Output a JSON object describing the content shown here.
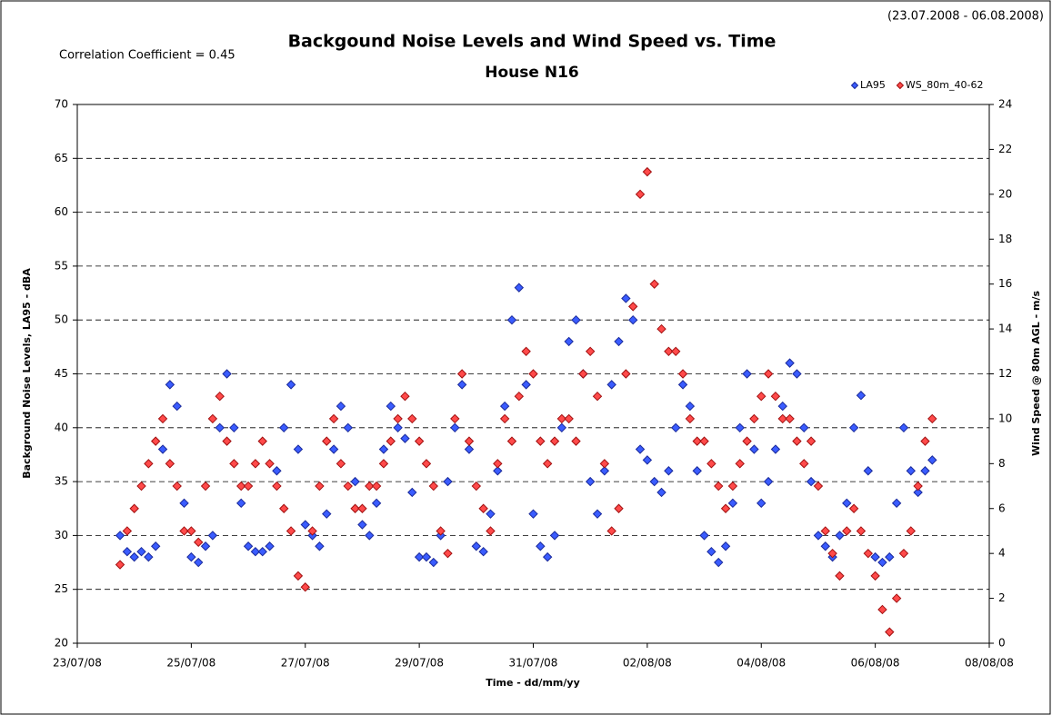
{
  "chart_data": {
    "type": "scatter",
    "title": "Backgound Noise Levels and Wind Speed vs. Time",
    "subtitle": "House N16",
    "annotation": "Correlation Coefficient = 0.45",
    "date_range": "(23.07.2008 - 06.08.2008)",
    "x_label": "Time - dd/mm/yy",
    "y_label": "Background Noise Levels, LA95 - dBA",
    "y2_label": "Wind Speed @ 80m AGL - m/s",
    "legend": "top-right",
    "grid": true,
    "x": [
      "2008-07-23T18:00",
      "2008-07-23T21:00",
      "2008-07-24T00:00",
      "2008-07-24T03:00",
      "2008-07-24T06:00",
      "2008-07-24T09:00",
      "2008-07-24T12:00",
      "2008-07-24T15:00",
      "2008-07-24T18:00",
      "2008-07-24T21:00",
      "2008-07-25T00:00",
      "2008-07-25T03:00",
      "2008-07-25T06:00",
      "2008-07-25T09:00",
      "2008-07-25T12:00",
      "2008-07-25T15:00",
      "2008-07-25T18:00",
      "2008-07-25T21:00",
      "2008-07-26T00:00",
      "2008-07-26T03:00",
      "2008-07-26T06:00",
      "2008-07-26T09:00",
      "2008-07-26T12:00",
      "2008-07-26T15:00",
      "2008-07-26T18:00",
      "2008-07-26T21:00",
      "2008-07-27T00:00",
      "2008-07-27T03:00",
      "2008-07-27T06:00",
      "2008-07-27T09:00",
      "2008-07-27T12:00",
      "2008-07-27T15:00",
      "2008-07-27T18:00",
      "2008-07-27T21:00",
      "2008-07-28T00:00",
      "2008-07-28T03:00",
      "2008-07-28T06:00",
      "2008-07-28T09:00",
      "2008-07-28T12:00",
      "2008-07-28T15:00",
      "2008-07-28T18:00",
      "2008-07-28T21:00",
      "2008-07-29T00:00",
      "2008-07-29T03:00",
      "2008-07-29T06:00",
      "2008-07-29T09:00",
      "2008-07-29T12:00",
      "2008-07-29T15:00",
      "2008-07-29T18:00",
      "2008-07-29T21:00",
      "2008-07-30T00:00",
      "2008-07-30T03:00",
      "2008-07-30T06:00",
      "2008-07-30T09:00",
      "2008-07-30T12:00",
      "2008-07-30T15:00",
      "2008-07-30T18:00",
      "2008-07-30T21:00",
      "2008-07-31T00:00",
      "2008-07-31T03:00",
      "2008-07-31T06:00",
      "2008-07-31T09:00",
      "2008-07-31T12:00",
      "2008-07-31T15:00",
      "2008-07-31T18:00",
      "2008-07-31T21:00",
      "2008-08-01T00:00",
      "2008-08-01T03:00",
      "2008-08-01T06:00",
      "2008-08-01T09:00",
      "2008-08-01T12:00",
      "2008-08-01T15:00",
      "2008-08-01T18:00",
      "2008-08-01T21:00",
      "2008-08-02T00:00",
      "2008-08-02T03:00",
      "2008-08-02T06:00",
      "2008-08-02T09:00",
      "2008-08-02T12:00",
      "2008-08-02T15:00",
      "2008-08-02T18:00",
      "2008-08-02T21:00",
      "2008-08-03T00:00",
      "2008-08-03T03:00",
      "2008-08-03T06:00",
      "2008-08-03T09:00",
      "2008-08-03T12:00",
      "2008-08-03T15:00",
      "2008-08-03T18:00",
      "2008-08-03T21:00",
      "2008-08-04T00:00",
      "2008-08-04T03:00",
      "2008-08-04T06:00",
      "2008-08-04T09:00",
      "2008-08-04T12:00",
      "2008-08-04T15:00",
      "2008-08-04T18:00",
      "2008-08-04T21:00",
      "2008-08-05T00:00",
      "2008-08-05T03:00",
      "2008-08-05T06:00",
      "2008-08-05T09:00",
      "2008-08-05T12:00",
      "2008-08-05T15:00",
      "2008-08-05T18:00",
      "2008-08-05T21:00",
      "2008-08-06T00:00",
      "2008-08-06T03:00",
      "2008-08-06T06:00",
      "2008-08-06T09:00",
      "2008-08-06T12:00",
      "2008-08-06T15:00",
      "2008-08-06T18:00",
      "2008-08-06T21:00",
      "2008-08-07T00:00"
    ],
    "series": [
      {
        "name": "LA95",
        "color": "#3a5cff",
        "stroke": "#1a2a9a",
        "values": [
          30,
          28.5,
          28,
          28.5,
          28,
          29,
          38,
          44,
          42,
          33,
          28,
          27.5,
          29,
          30,
          40,
          45,
          40,
          33,
          29,
          28.5,
          28.5,
          29,
          36,
          40,
          44,
          38,
          31,
          30,
          29,
          32,
          38,
          42,
          40,
          35,
          31,
          30,
          33,
          38,
          42,
          40,
          39,
          34,
          28,
          28,
          27.5,
          30,
          35,
          40,
          44,
          38,
          29,
          28.5,
          32,
          36,
          42,
          50,
          53,
          44,
          32,
          29,
          28,
          30,
          40,
          48,
          50,
          45,
          35,
          32,
          36,
          44,
          48,
          52,
          50,
          38,
          37,
          35,
          34,
          36,
          40,
          44,
          42,
          36,
          30,
          28.5,
          27.5,
          29,
          33,
          40,
          45,
          38,
          33,
          35,
          38,
          42,
          46,
          45,
          40,
          35,
          30,
          29,
          28,
          30,
          33,
          40,
          43,
          36,
          28,
          27.5,
          28,
          33,
          40,
          36,
          34,
          36,
          37
        ]
      },
      {
        "name": "WS_80m_40-62",
        "color": "#ff4a4a",
        "stroke": "#a01010",
        "axis": "y2",
        "values": [
          3.5,
          5,
          6,
          7,
          8,
          9,
          10,
          8,
          7,
          5,
          5,
          4.5,
          7,
          10,
          11,
          9,
          8,
          7,
          7,
          8,
          9,
          8,
          7,
          6,
          5,
          3,
          2.5,
          5,
          7,
          9,
          10,
          8,
          7,
          6,
          6,
          7,
          7,
          8,
          9,
          10,
          11,
          10,
          9,
          8,
          7,
          5,
          4,
          10,
          12,
          9,
          7,
          6,
          5,
          8,
          10,
          9,
          11,
          13,
          12,
          9,
          8,
          9,
          10,
          10,
          9,
          12,
          13,
          11,
          8,
          5,
          6,
          12,
          15,
          20,
          21,
          16,
          14,
          13,
          13,
          12,
          10,
          9,
          9,
          8,
          7,
          6,
          7,
          8,
          9,
          10,
          11,
          12,
          11,
          10,
          10,
          9,
          8,
          9,
          7,
          5,
          4,
          3,
          5,
          6,
          5,
          4,
          3,
          1.5,
          0.5,
          2,
          4,
          5,
          7,
          9,
          10
        ]
      }
    ],
    "xlim": [
      "2008-07-23T00:00",
      "2008-08-08T00:00"
    ],
    "xticks": [
      {
        "value": "2008-07-23T00:00",
        "label": "23/07/08"
      },
      {
        "value": "2008-07-25T00:00",
        "label": "25/07/08"
      },
      {
        "value": "2008-07-27T00:00",
        "label": "27/07/08"
      },
      {
        "value": "2008-07-29T00:00",
        "label": "29/07/08"
      },
      {
        "value": "2008-07-31T00:00",
        "label": "31/07/08"
      },
      {
        "value": "2008-08-02T00:00",
        "label": "02/08/08"
      },
      {
        "value": "2008-08-04T00:00",
        "label": "04/08/08"
      },
      {
        "value": "2008-08-06T00:00",
        "label": "06/08/08"
      },
      {
        "value": "2008-08-08T00:00",
        "label": "08/08/08"
      }
    ],
    "ylim": [
      20,
      70
    ],
    "yticks": [
      20,
      25,
      30,
      35,
      40,
      45,
      50,
      55,
      60,
      65,
      70
    ],
    "y2lim": [
      0,
      24
    ],
    "y2ticks": [
      0,
      2,
      4,
      6,
      8,
      10,
      12,
      14,
      16,
      18,
      20,
      22,
      24
    ]
  }
}
